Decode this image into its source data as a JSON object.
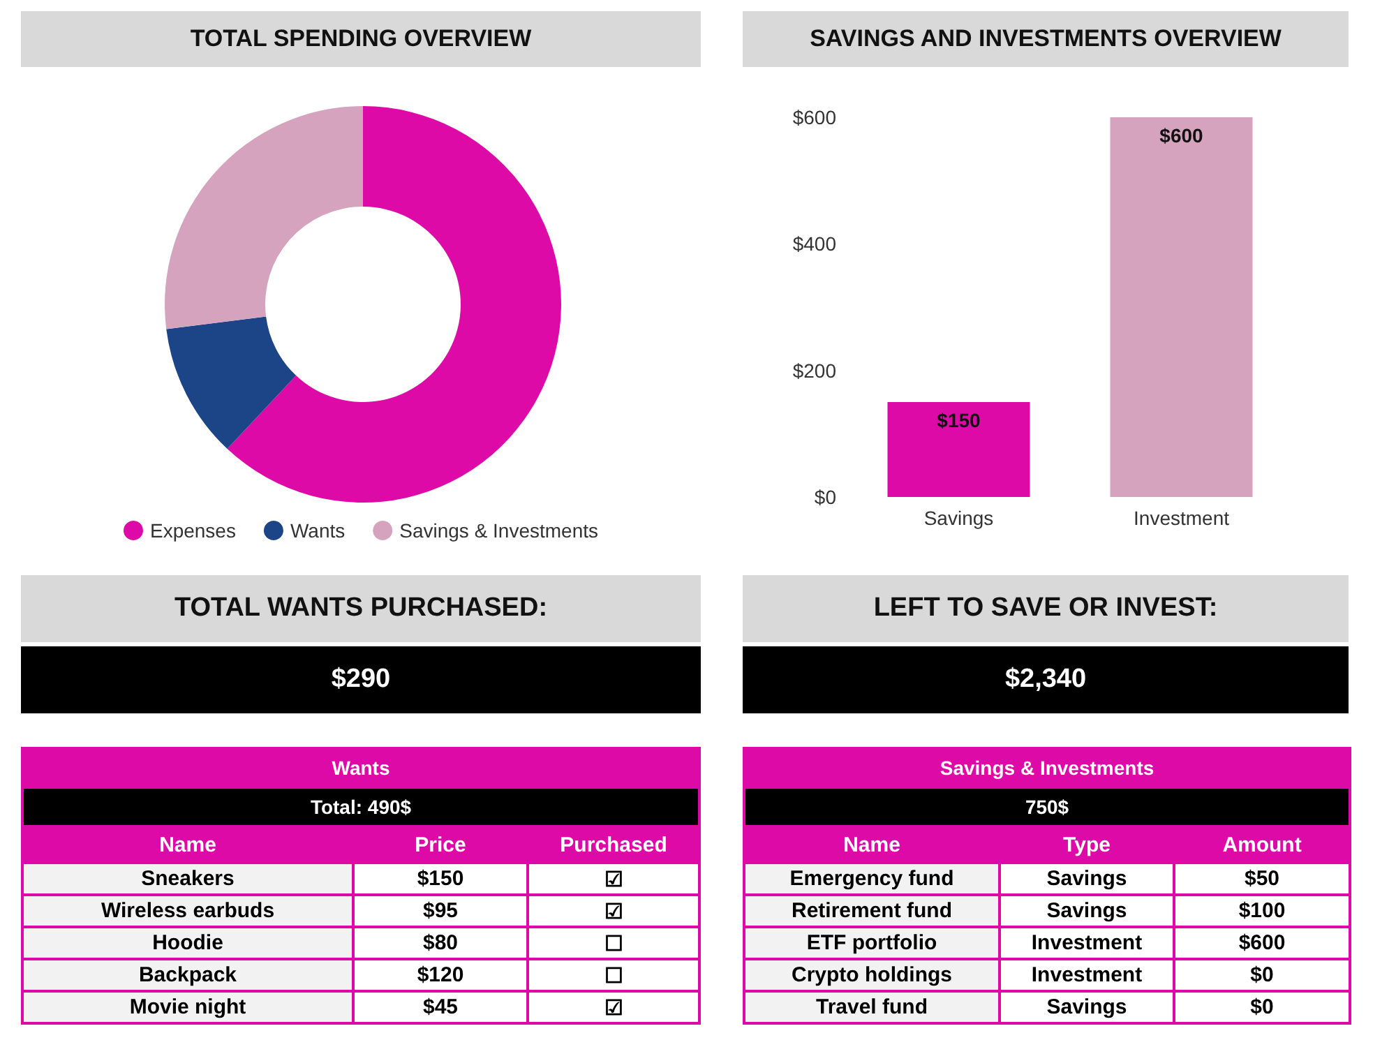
{
  "chart_data": [
    {
      "type": "donut",
      "title": "TOTAL SPENDING OVERVIEW",
      "categories": [
        "Expenses",
        "Wants",
        "Savings & Investments"
      ],
      "values": [
        62,
        11,
        27
      ],
      "colors": [
        "#dd0aa7",
        "#1c4587",
        "#d6a3be"
      ],
      "legend": "bottom"
    },
    {
      "type": "bar",
      "title": "SAVINGS AND INVESTMENTS OVERVIEW",
      "categories": [
        "Savings",
        "Investment"
      ],
      "values": [
        150,
        600
      ],
      "colors": [
        "#dd0aa7",
        "#d6a3be"
      ],
      "value_labels": [
        "$150",
        "$600"
      ],
      "ylim": [
        0,
        600
      ],
      "yticks": [
        {
          "value": 0,
          "label": "$0"
        },
        {
          "value": 200,
          "label": "$200"
        },
        {
          "value": 400,
          "label": "$400"
        },
        {
          "value": 600,
          "label": "$600"
        }
      ],
      "grid": false
    },
    {
      "type": "other",
      "title": "TOTAL WANTS PURCHASED:",
      "annotations": [
        "$290"
      ]
    },
    {
      "type": "other",
      "title": "LEFT TO SAVE OR INVEST:",
      "annotations": [
        "$2,340"
      ]
    },
    {
      "type": "other",
      "title": "Wants",
      "subtitle": "Total: 490$",
      "categories": [
        "Name",
        "Price",
        "Purchased"
      ],
      "cell_labels": [
        [
          "Sneakers",
          "$150",
          "☑"
        ],
        [
          "Wireless earbuds",
          "$95",
          "☑"
        ],
        [
          "Hoodie",
          "$80",
          "☐"
        ],
        [
          "Backpack",
          "$120",
          "☐"
        ],
        [
          "Movie night",
          "$45",
          "☑"
        ]
      ]
    },
    {
      "type": "other",
      "title": "Savings & Investments",
      "subtitle": "750$",
      "categories": [
        "Name",
        "Type",
        "Amount"
      ],
      "cell_labels": [
        [
          "Emergency fund",
          "Savings",
          "$50"
        ],
        [
          "Retirement fund",
          "Savings",
          "$100"
        ],
        [
          "ETF portfolio",
          "Investment",
          "$600"
        ],
        [
          "Crypto holdings",
          "Investment",
          "$0"
        ],
        [
          "Travel fund",
          "Savings",
          "$0"
        ]
      ]
    }
  ]
}
